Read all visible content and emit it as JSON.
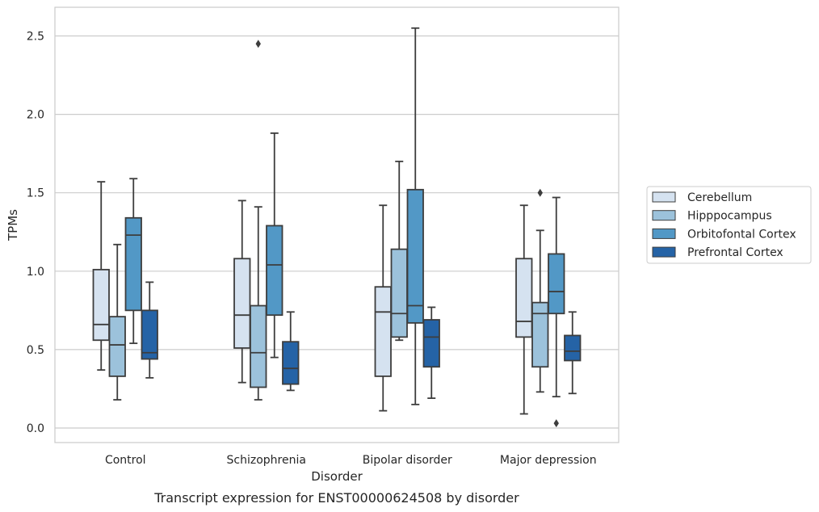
{
  "chart_data": {
    "type": "box",
    "title": "Transcript expression for ENST00000624508 by disorder",
    "xlabel": "Disorder",
    "ylabel": "TPMs",
    "ylim": [
      -0.09,
      2.65
    ],
    "yticks": [
      0.0,
      0.5,
      1.0,
      1.5,
      2.0,
      2.5
    ],
    "ytick_labels": [
      "0.0",
      "0.5",
      "1.0",
      "1.5",
      "2.0",
      "2.5"
    ],
    "categories": [
      "Control",
      "Schizophrenia",
      "Bipolar disorder",
      "Major depression"
    ],
    "grid": "horizontal",
    "legend_position": "right",
    "series": [
      {
        "name": "Cerebellum",
        "color": "#d5e2f0",
        "boxes": [
          {
            "whislo": 0.37,
            "q1": 0.56,
            "med": 0.66,
            "q3": 1.01,
            "whishi": 1.57,
            "fliers": []
          },
          {
            "whislo": 0.29,
            "q1": 0.51,
            "med": 0.72,
            "q3": 1.08,
            "whishi": 1.45,
            "fliers": []
          },
          {
            "whislo": 0.11,
            "q1": 0.33,
            "med": 0.74,
            "q3": 0.9,
            "whishi": 1.42,
            "fliers": []
          },
          {
            "whislo": 0.09,
            "q1": 0.58,
            "med": 0.68,
            "q3": 1.08,
            "whishi": 1.42,
            "fliers": []
          }
        ]
      },
      {
        "name": "Hipppocampus",
        "color": "#9cc2db",
        "boxes": [
          {
            "whislo": 0.18,
            "q1": 0.33,
            "med": 0.53,
            "q3": 0.71,
            "whishi": 1.17,
            "fliers": []
          },
          {
            "whislo": 0.18,
            "q1": 0.26,
            "med": 0.48,
            "q3": 0.78,
            "whishi": 1.41,
            "fliers": [
              2.45
            ]
          },
          {
            "whislo": 0.56,
            "q1": 0.58,
            "med": 0.73,
            "q3": 1.14,
            "whishi": 1.7,
            "fliers": []
          },
          {
            "whislo": 0.23,
            "q1": 0.39,
            "med": 0.73,
            "q3": 0.8,
            "whishi": 1.26,
            "fliers": [
              1.5
            ]
          }
        ]
      },
      {
        "name": "Orbitofontal Cortex",
        "color": "#5298c6",
        "boxes": [
          {
            "whislo": 0.54,
            "q1": 0.75,
            "med": 1.23,
            "q3": 1.34,
            "whishi": 1.59,
            "fliers": []
          },
          {
            "whislo": 0.45,
            "q1": 0.72,
            "med": 1.04,
            "q3": 1.29,
            "whishi": 1.88,
            "fliers": []
          },
          {
            "whislo": 0.15,
            "q1": 0.67,
            "med": 0.78,
            "q3": 1.52,
            "whishi": 2.55,
            "fliers": []
          },
          {
            "whislo": 0.2,
            "q1": 0.73,
            "med": 0.87,
            "q3": 1.11,
            "whishi": 1.47,
            "fliers": [
              0.03
            ]
          }
        ]
      },
      {
        "name": "Prefrontal Cortex",
        "color": "#2563a6",
        "boxes": [
          {
            "whislo": 0.32,
            "q1": 0.44,
            "med": 0.48,
            "q3": 0.75,
            "whishi": 0.93,
            "fliers": []
          },
          {
            "whislo": 0.24,
            "q1": 0.28,
            "med": 0.38,
            "q3": 0.55,
            "whishi": 0.74,
            "fliers": []
          },
          {
            "whislo": 0.19,
            "q1": 0.39,
            "med": 0.58,
            "q3": 0.69,
            "whishi": 0.77,
            "fliers": []
          },
          {
            "whislo": 0.22,
            "q1": 0.43,
            "med": 0.49,
            "q3": 0.59,
            "whishi": 0.74,
            "fliers": []
          }
        ]
      }
    ]
  }
}
